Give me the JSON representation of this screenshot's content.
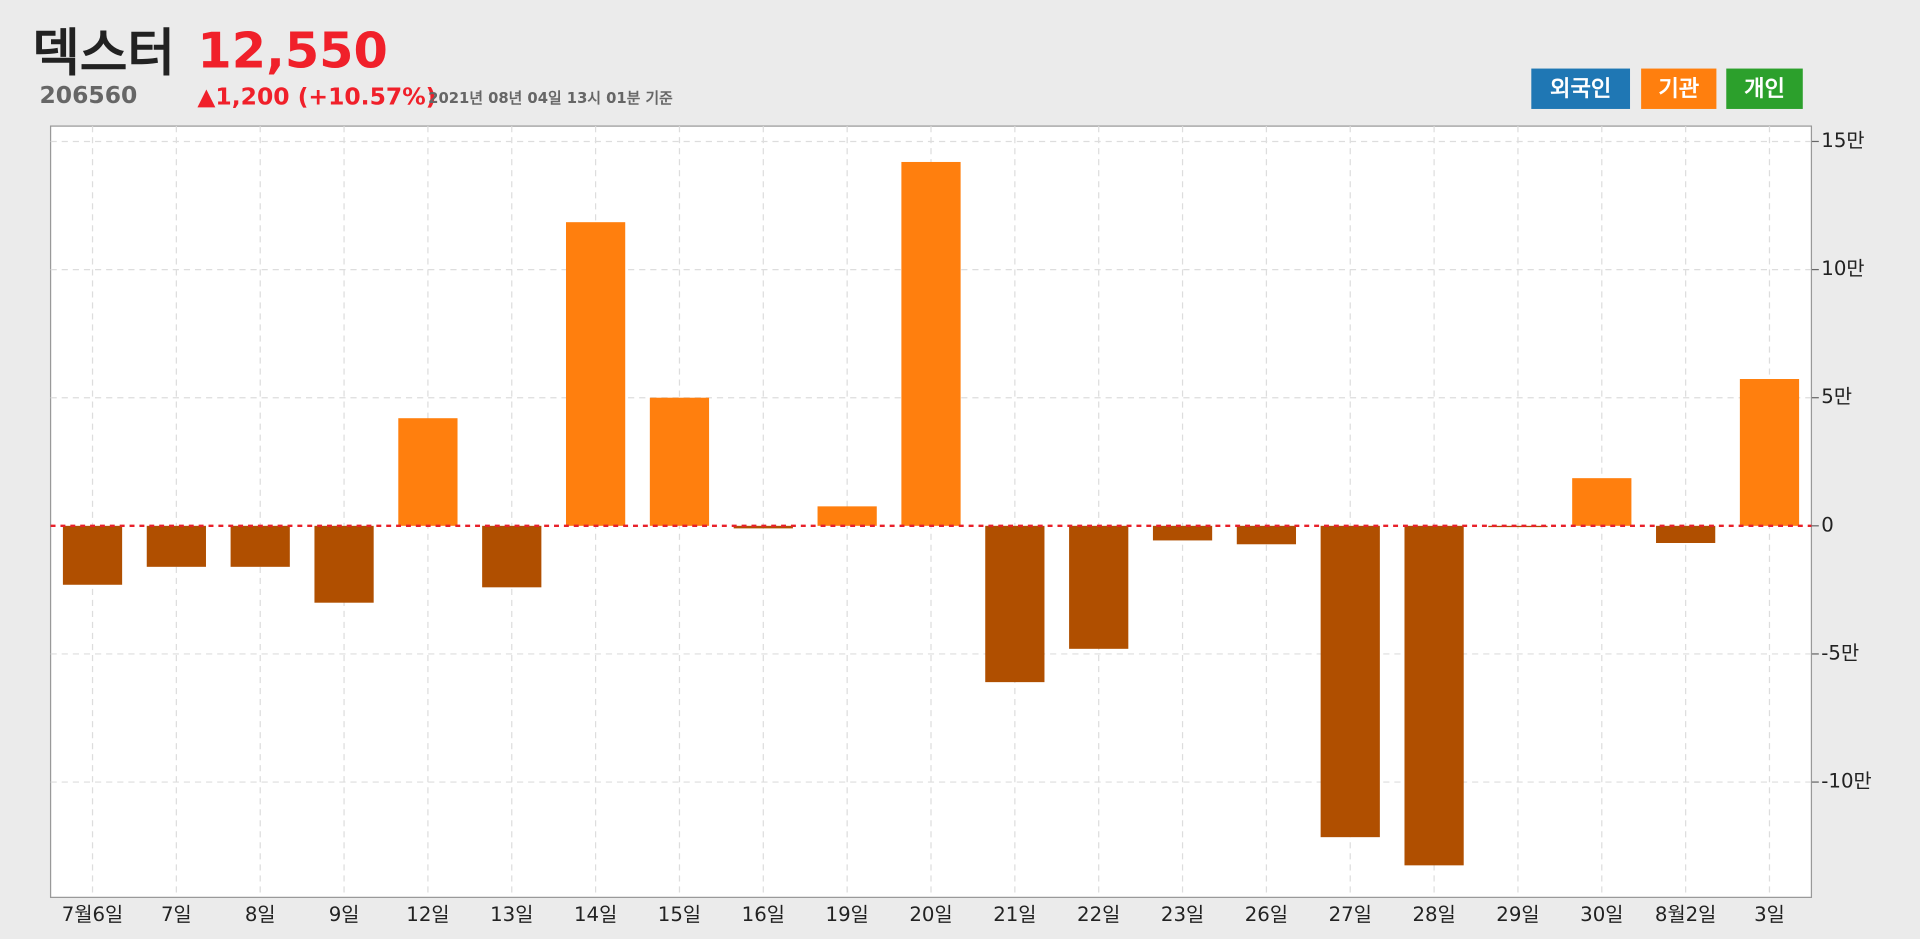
{
  "header": {
    "name": "덱스터",
    "code": "206560",
    "price": "12,550",
    "change": "▲1,200 (+10.57%)",
    "timestamp": "2021년 08년 04일 13시 01분 기준",
    "buttons": [
      {
        "label": "외국인",
        "color": "#1f77b4"
      },
      {
        "label": "기관",
        "color": "#ff7f0e"
      },
      {
        "label": "개인",
        "color": "#2ca02c"
      }
    ]
  },
  "chart_data": {
    "type": "bar",
    "categories": [
      "7월6일",
      "7일",
      "8일",
      "9일",
      "12일",
      "13일",
      "14일",
      "15일",
      "16일",
      "19일",
      "20일",
      "21일",
      "22일",
      "23일",
      "26일",
      "27일",
      "28일",
      "29일",
      "30일",
      "8월2일",
      "3일"
    ],
    "values": [
      -23000,
      -16000,
      -16000,
      -30000,
      42000,
      -24000,
      118500,
      50000,
      -1000,
      7600,
      142000,
      -61000,
      -48000,
      -5700,
      -7200,
      -121500,
      -132500,
      -500,
      18600,
      -6700,
      57300
    ],
    "color": "#ff7f0e",
    "negative_color": "#b04f00",
    "ylim": [
      -145000,
      156000
    ],
    "yticks": [
      {
        "value": -100000,
        "label": "-10만"
      },
      {
        "value": -50000,
        "label": "-5만"
      },
      0,
      {
        "value": 50000,
        "label": "5만"
      },
      {
        "value": 100000,
        "label": "10만"
      },
      {
        "value": 150000,
        "label": "15만"
      }
    ],
    "grid": true,
    "zero_line_color": "#e8202a"
  }
}
